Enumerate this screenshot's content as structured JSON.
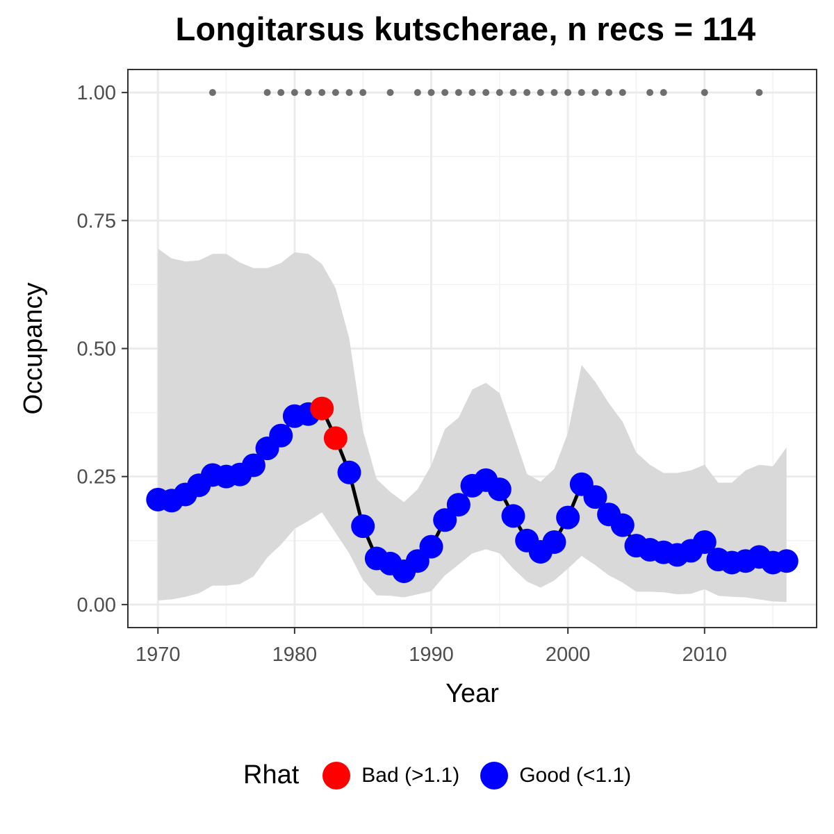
{
  "chart_data": {
    "type": "line",
    "title": "Longitarsus kutscherae, n recs = 114",
    "xlabel": "Year",
    "ylabel": "Occupancy",
    "xlim": [
      1967.8,
      2018.2
    ],
    "ylim": [
      -0.045,
      1.045
    ],
    "x_ticks": [
      1970,
      1980,
      1990,
      2000,
      2010
    ],
    "x_tick_labels": [
      "1970",
      "1980",
      "1990",
      "2000",
      "2010"
    ],
    "y_ticks": [
      0,
      0.25,
      0.5,
      0.75,
      1.0
    ],
    "y_tick_labels": [
      "0.00",
      "0.25",
      "0.50",
      "0.75",
      "1.00"
    ],
    "grid": true,
    "legend_position": "bottom",
    "legend_title": "Rhat",
    "colors": {
      "Bad (>1.1)": "#ff0000",
      "Good (<1.1)": "#0000ff",
      "line": "#000000",
      "ribbon": "#d9d9d9",
      "records": "#6e6e6e"
    },
    "series": [
      {
        "name": "Rhat",
        "x": [
          1970,
          1971,
          1972,
          1973,
          1974,
          1975,
          1976,
          1977,
          1978,
          1979,
          1980,
          1981,
          1982,
          1983,
          1984,
          1985,
          1986,
          1987,
          1988,
          1989,
          1990,
          1991,
          1992,
          1993,
          1994,
          1995,
          1996,
          1997,
          1998,
          1999,
          2000,
          2001,
          2002,
          2003,
          2004,
          2005,
          2006,
          2007,
          2008,
          2009,
          2010,
          2011,
          2012,
          2013,
          2014,
          2015,
          2016
        ],
        "y": [
          0.205,
          0.203,
          0.215,
          0.233,
          0.253,
          0.25,
          0.254,
          0.272,
          0.305,
          0.33,
          0.368,
          0.372,
          0.383,
          0.325,
          0.258,
          0.153,
          0.09,
          0.08,
          0.065,
          0.085,
          0.113,
          0.165,
          0.195,
          0.232,
          0.243,
          0.225,
          0.173,
          0.125,
          0.103,
          0.122,
          0.17,
          0.235,
          0.21,
          0.176,
          0.155,
          0.115,
          0.107,
          0.102,
          0.097,
          0.105,
          0.122,
          0.088,
          0.082,
          0.085,
          0.093,
          0.082,
          0.085
        ],
        "rhat_class": [
          "Good (<1.1)",
          "Good (<1.1)",
          "Good (<1.1)",
          "Good (<1.1)",
          "Good (<1.1)",
          "Good (<1.1)",
          "Good (<1.1)",
          "Good (<1.1)",
          "Good (<1.1)",
          "Good (<1.1)",
          "Good (<1.1)",
          "Good (<1.1)",
          "Bad (>1.1)",
          "Bad (>1.1)",
          "Good (<1.1)",
          "Good (<1.1)",
          "Good (<1.1)",
          "Good (<1.1)",
          "Good (<1.1)",
          "Good (<1.1)",
          "Good (<1.1)",
          "Good (<1.1)",
          "Good (<1.1)",
          "Good (<1.1)",
          "Good (<1.1)",
          "Good (<1.1)",
          "Good (<1.1)",
          "Good (<1.1)",
          "Good (<1.1)",
          "Good (<1.1)",
          "Good (<1.1)",
          "Good (<1.1)",
          "Good (<1.1)",
          "Good (<1.1)",
          "Good (<1.1)",
          "Good (<1.1)",
          "Good (<1.1)",
          "Good (<1.1)",
          "Good (<1.1)",
          "Good (<1.1)",
          "Good (<1.1)",
          "Good (<1.1)",
          "Good (<1.1)",
          "Good (<1.1)",
          "Good (<1.1)",
          "Good (<1.1)",
          "Good (<1.1)"
        ],
        "upper": [
          0.695,
          0.676,
          0.67,
          0.672,
          0.685,
          0.685,
          0.668,
          0.657,
          0.657,
          0.667,
          0.688,
          0.685,
          0.665,
          0.618,
          0.52,
          0.34,
          0.245,
          0.22,
          0.2,
          0.225,
          0.272,
          0.343,
          0.365,
          0.42,
          0.433,
          0.413,
          0.335,
          0.255,
          0.24,
          0.265,
          0.335,
          0.468,
          0.435,
          0.393,
          0.357,
          0.297,
          0.273,
          0.257,
          0.257,
          0.262,
          0.273,
          0.238,
          0.238,
          0.262,
          0.273,
          0.27,
          0.307
        ],
        "lower": [
          0.008,
          0.01,
          0.015,
          0.022,
          0.037,
          0.037,
          0.04,
          0.055,
          0.092,
          0.117,
          0.148,
          0.163,
          0.18,
          0.14,
          0.1,
          0.048,
          0.018,
          0.017,
          0.014,
          0.02,
          0.026,
          0.057,
          0.078,
          0.1,
          0.108,
          0.1,
          0.07,
          0.045,
          0.033,
          0.047,
          0.07,
          0.095,
          0.077,
          0.057,
          0.043,
          0.025,
          0.025,
          0.024,
          0.02,
          0.021,
          0.03,
          0.017,
          0.015,
          0.014,
          0.01,
          0.006,
          0.005
        ]
      }
    ],
    "records": {
      "x": [
        1974,
        1978,
        1979,
        1980,
        1981,
        1982,
        1983,
        1984,
        1985,
        1987,
        1989,
        1990,
        1991,
        1992,
        1993,
        1994,
        1995,
        1996,
        1997,
        1998,
        1999,
        2000,
        2001,
        2002,
        2003,
        2004,
        2006,
        2007,
        2010,
        2014
      ],
      "y": 1.0
    }
  }
}
